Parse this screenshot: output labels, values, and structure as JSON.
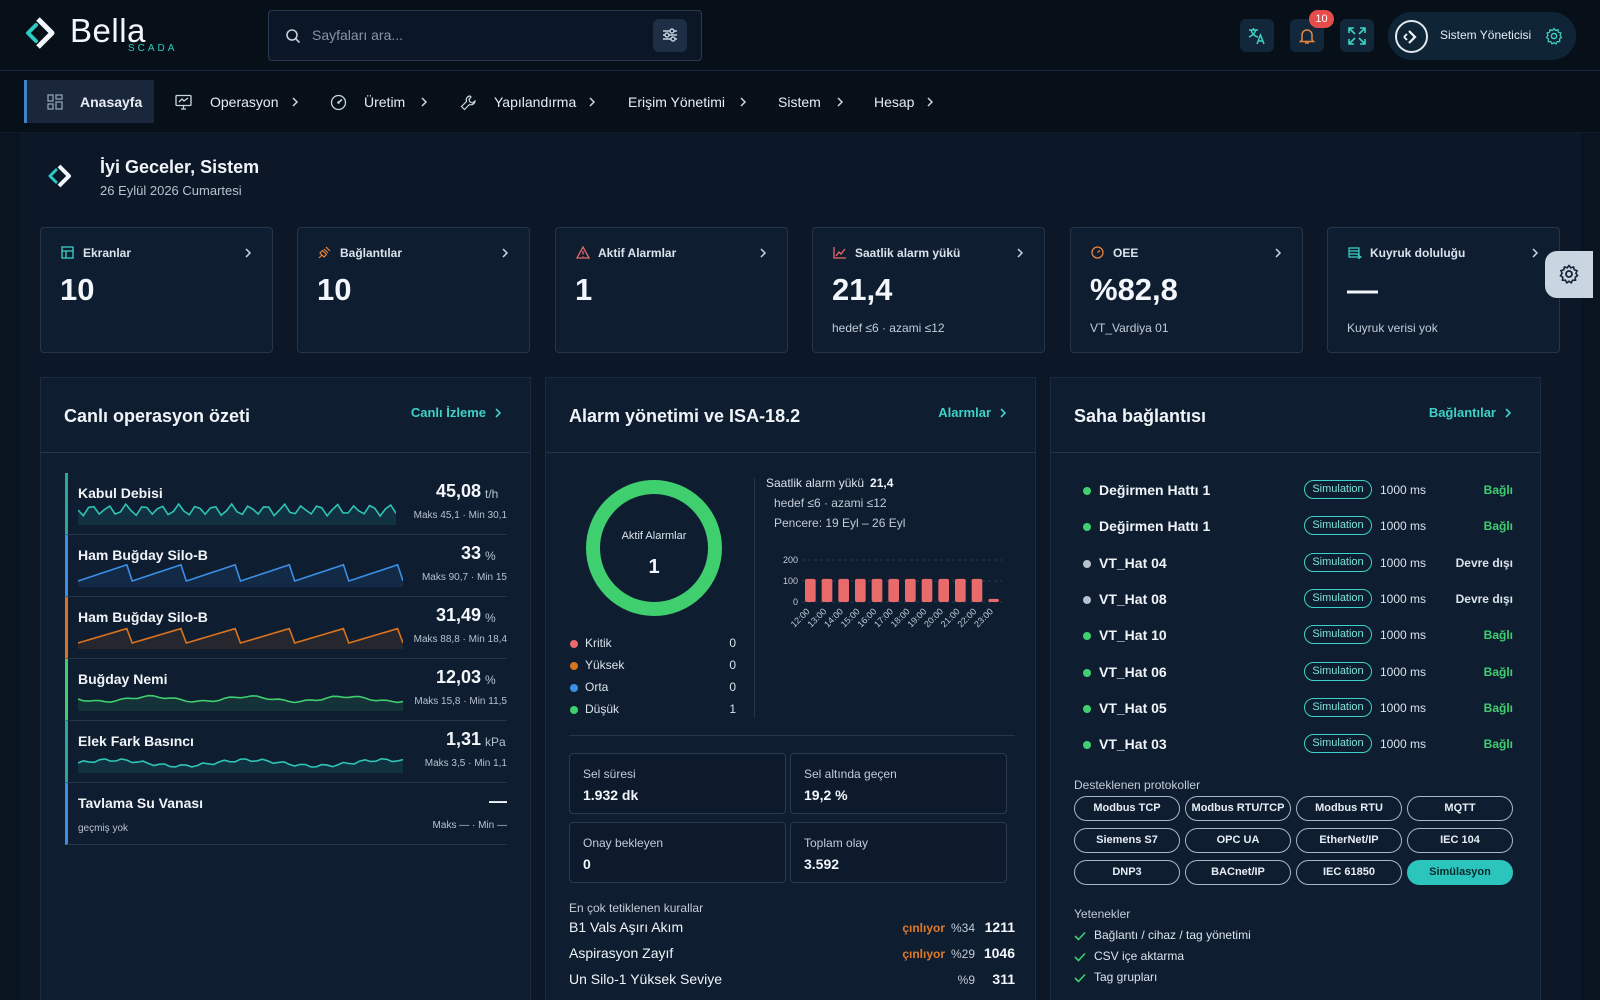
{
  "brand": {
    "name": "Bella",
    "sub": "SCADA"
  },
  "search": {
    "placeholder": "Sayfaları ara..."
  },
  "notifications": {
    "count": "10"
  },
  "user": {
    "name": "Sistem Yöneticisi"
  },
  "nav": {
    "items": [
      {
        "label": "Anasayfa"
      },
      {
        "label": "Operasyon"
      },
      {
        "label": "Üretim"
      },
      {
        "label": "Yapılandırma"
      },
      {
        "label": "Erişim Yönetimi"
      },
      {
        "label": "Sistem"
      },
      {
        "label": "Hesap"
      }
    ]
  },
  "greeting": {
    "title": "İyi Geceler, Sistem",
    "date": "26 Eylül 2026 Cumartesi"
  },
  "stats": [
    {
      "title": "Ekranlar",
      "value": "10",
      "sub": ""
    },
    {
      "title": "Bağlantılar",
      "value": "10",
      "sub": ""
    },
    {
      "title": "Aktif Alarmlar",
      "value": "1",
      "sub": ""
    },
    {
      "title": "Saatlik alarm yükü",
      "value": "21,4",
      "sub": "hedef ≤6 · azami ≤12"
    },
    {
      "title": "OEE",
      "value": "%82,8",
      "sub": "VT_Vardiya 01"
    },
    {
      "title": "Kuyruk doluluğu",
      "value": "—",
      "sub": "Kuyruk verisi yok"
    }
  ],
  "live": {
    "title": "Canlı operasyon özeti",
    "link": "Canlı İzleme",
    "metrics": [
      {
        "name": "Kabul Debisi",
        "value": "45,08",
        "unit": "t/h",
        "range": "Maks 45,1 · Min 30,1",
        "color": "#2ec4b6",
        "border": "#2aa89f"
      },
      {
        "name": "Ham Buğday Silo-B",
        "value": "33",
        "unit": "%",
        "range": "Maks 90,7 · Min 15",
        "color": "#3b8fe6",
        "border": "#3b8fe6"
      },
      {
        "name": "Ham Buğday Silo-B",
        "value": "31,49",
        "unit": "%",
        "range": "Maks 88,8 · Min 18,4",
        "color": "#d9731f",
        "border": "#d9731f"
      },
      {
        "name": "Buğday Nemi",
        "value": "12,03",
        "unit": "%",
        "range": "Maks 15,8 · Min 11,5",
        "color": "#3fcf6e",
        "border": "#3fcf6e"
      },
      {
        "name": "Elek Fark Basıncı",
        "value": "1,31",
        "unit": "kPa",
        "range": "Maks 3,5 · Min 1,1",
        "color": "#2ec4b6",
        "border": "#2aa89f"
      },
      {
        "name": "Tavlama Su Vanası",
        "value": "—",
        "unit": "",
        "range": "Maks — · Min —",
        "nohist": "geçmiş yok",
        "color": "#3b8fe6",
        "border": "#3b8fe6"
      }
    ]
  },
  "alarm": {
    "title": "Alarm yönetimi ve ISA-18.2",
    "link": "Alarmlar",
    "donut_label": "Aktif Alarmlar",
    "donut_value": "1",
    "severities": [
      {
        "label": "Kritik",
        "count": "0",
        "color": "#e96a6a"
      },
      {
        "label": "Yüksek",
        "count": "0",
        "color": "#d9731f"
      },
      {
        "label": "Orta",
        "count": "0",
        "color": "#3b8fe6"
      },
      {
        "label": "Düşük",
        "count": "1",
        "color": "#3fcf6e"
      }
    ],
    "load_label": "Saatlik alarm yükü",
    "load_value": "21,4",
    "load_target": "hedef ≤6 · azami ≤12",
    "window": "Pencere: 19 Eyl – 26 Eyl",
    "kpis": [
      {
        "label": "Sel süresi",
        "value": "1.932 dk"
      },
      {
        "label": "Sel altında geçen",
        "value": "19,2 %"
      },
      {
        "label": "Onay bekleyen",
        "value": "0"
      },
      {
        "label": "Toplam olay",
        "value": "3.592"
      }
    ],
    "rules_title": "En çok tetiklenen kurallar",
    "rules": [
      {
        "name": "B1 Vals Aşırı Akım",
        "state": "çınlıyor",
        "pct": "%34",
        "count": "1211"
      },
      {
        "name": "Aspirasyon Zayıf",
        "state": "çınlıyor",
        "pct": "%29",
        "count": "1046"
      },
      {
        "name": "Un Silo-1 Yüksek Seviye",
        "state": "",
        "pct": "%9",
        "count": "311"
      }
    ]
  },
  "chart_data": {
    "type": "bar",
    "title": "",
    "categories": [
      "12:00",
      "13:00",
      "14:00",
      "15:00",
      "16:00",
      "17:00",
      "18:00",
      "19:00",
      "20:00",
      "21:00",
      "22:00",
      "23:00"
    ],
    "values": [
      110,
      110,
      110,
      110,
      110,
      110,
      110,
      110,
      110,
      110,
      110,
      15
    ],
    "yticks": [
      "200",
      "100",
      "0"
    ],
    "ylim": [
      0,
      200
    ],
    "grid": true,
    "color": "#e96a6a"
  },
  "field": {
    "title": "Saha bağlantısı",
    "link": "Bağlantılar",
    "connections": [
      {
        "name": "Değirmen Hattı 1",
        "tag": "Simulation",
        "ms": "1000 ms",
        "status": "Bağlı",
        "ok": true
      },
      {
        "name": "Değirmen Hattı 1",
        "tag": "Simulation",
        "ms": "1000 ms",
        "status": "Bağlı",
        "ok": true
      },
      {
        "name": "VT_Hat 04",
        "tag": "Simulation",
        "ms": "1000 ms",
        "status": "Devre dışı",
        "ok": false
      },
      {
        "name": "VT_Hat 08",
        "tag": "Simulation",
        "ms": "1000 ms",
        "status": "Devre dışı",
        "ok": false
      },
      {
        "name": "VT_Hat 10",
        "tag": "Simulation",
        "ms": "1000 ms",
        "status": "Bağlı",
        "ok": true
      },
      {
        "name": "VT_Hat 06",
        "tag": "Simulation",
        "ms": "1000 ms",
        "status": "Bağlı",
        "ok": true
      },
      {
        "name": "VT_Hat 05",
        "tag": "Simulation",
        "ms": "1000 ms",
        "status": "Bağlı",
        "ok": true
      },
      {
        "name": "VT_Hat 03",
        "tag": "Simulation",
        "ms": "1000 ms",
        "status": "Bağlı",
        "ok": true
      }
    ],
    "protocols_title": "Desteklenen protokoller",
    "protocols": [
      "Modbus TCP",
      "Modbus RTU/TCP",
      "Modbus RTU",
      "MQTT",
      "Siemens S7",
      "OPC UA",
      "EtherNet/IP",
      "IEC 104",
      "DNP3",
      "BACnet/IP",
      "IEC 61850",
      "Simülasyon"
    ],
    "active_protocol": "Simülasyon",
    "capabilities_title": "Yetenekler",
    "capabilities": [
      "Bağlantı / cihaz / tag yönetimi",
      "CSV içe aktarma",
      "Tag grupları"
    ]
  }
}
